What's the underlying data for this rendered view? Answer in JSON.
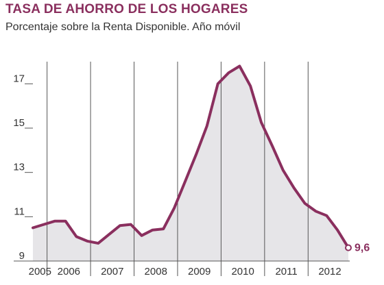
{
  "title": "TASA DE AHORRO DE LOS HOGARES",
  "subtitle": "Porcentaje sobre la Renta Disponible. Año móvil",
  "colors": {
    "line": "#8a2f5e",
    "area": "#e6e5e8",
    "gridline": "#555555",
    "text": "#333333"
  },
  "chart_data": {
    "type": "area",
    "title": "TASA DE AHORRO DE LOS HOGARES",
    "subtitle": "Porcentaje sobre la Renta Disponible. Año móvil",
    "xlabel": "",
    "ylabel": "",
    "ylim": [
      9,
      18
    ],
    "y_ticks": [
      9,
      11,
      13,
      15,
      17
    ],
    "x_ticks": [
      "2005",
      "2006",
      "2007",
      "2008",
      "2009",
      "2010",
      "2011",
      "2012"
    ],
    "grid": "vertical lines at year boundaries; horizontal baseline",
    "x": [
      "2004-T4",
      "2005-T1",
      "2005-T2",
      "2005-T3",
      "2005-T4",
      "2006-T1",
      "2006-T2",
      "2006-T3",
      "2006-T4",
      "2007-T1",
      "2007-T2",
      "2007-T3",
      "2007-T4",
      "2008-T1",
      "2008-T2",
      "2008-T3",
      "2008-T4",
      "2009-T1",
      "2009-T2",
      "2009-T3",
      "2009-T4",
      "2010-T1",
      "2010-T2",
      "2010-T3",
      "2010-T4",
      "2011-T1",
      "2011-T2",
      "2011-T3",
      "2011-T4",
      "2012-T1"
    ],
    "series": [
      {
        "values": [
          10.5,
          10.65,
          10.8,
          10.8,
          10.1,
          9.9,
          9.8,
          10.2,
          10.6,
          10.65,
          10.15,
          10.4,
          10.45,
          11.4,
          12.6,
          13.8,
          15.1,
          17.0,
          17.5,
          17.8,
          16.9,
          15.25,
          14.2,
          13.1,
          12.3,
          11.6,
          11.25,
          11.05,
          10.4,
          9.6
        ]
      }
    ],
    "end_label": "9,6"
  }
}
